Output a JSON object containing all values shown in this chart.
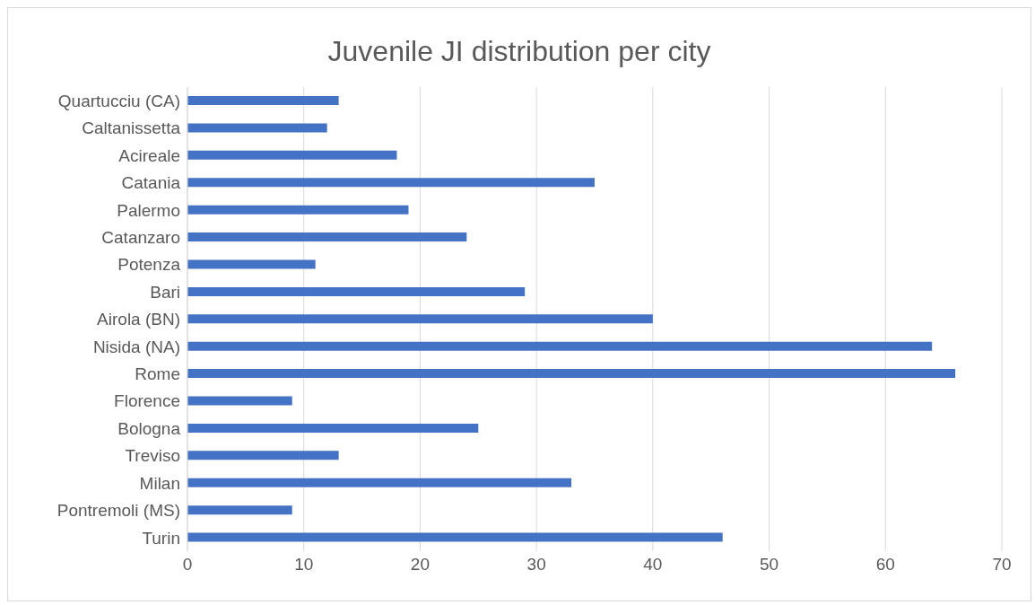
{
  "chart_data": {
    "type": "bar",
    "orientation": "horizontal",
    "title": "Juvenile JI distribution per city",
    "categories": [
      "Quartucciu (CA)",
      "Caltanissetta",
      "Acireale",
      "Catania",
      "Palermo",
      "Catanzaro",
      "Potenza",
      "Bari",
      "Airola (BN)",
      "Nisida (NA)",
      "Rome",
      "Florence",
      "Bologna",
      "Treviso",
      "Milan",
      "Pontremoli (MS)",
      "Turin"
    ],
    "values": [
      13,
      12,
      18,
      35,
      19,
      24,
      11,
      29,
      40,
      64,
      66,
      9,
      25,
      13,
      33,
      9,
      46
    ],
    "color": "#4472c4",
    "xlim": [
      0,
      70
    ],
    "xticks": [
      0,
      10,
      20,
      30,
      40,
      50,
      60,
      70
    ],
    "grid": "x"
  }
}
